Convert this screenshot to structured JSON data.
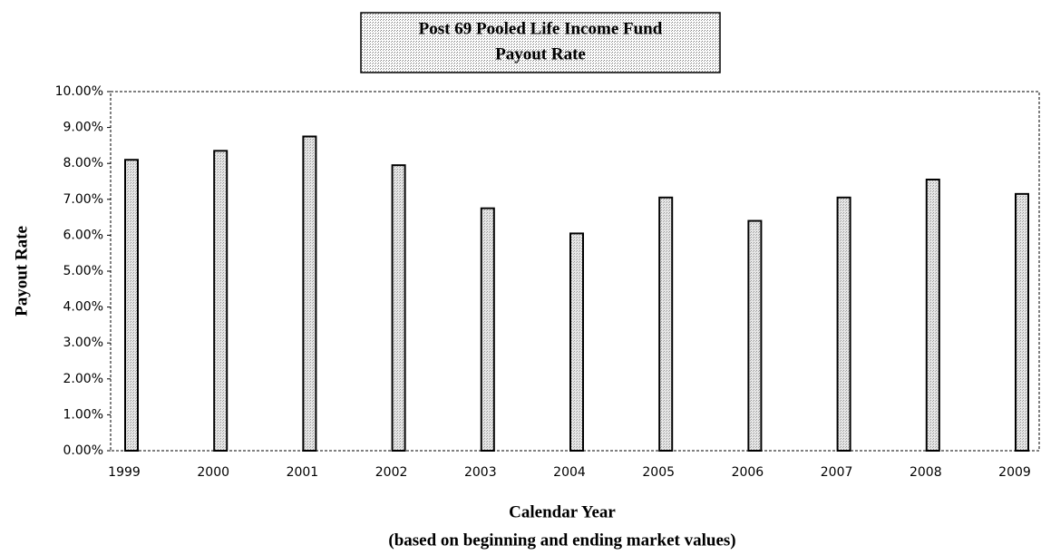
{
  "chart_data": {
    "type": "bar",
    "title": [
      "Post 69 Pooled Life Income Fund",
      "Payout Rate"
    ],
    "x_label": "Calendar Year",
    "note": "(based on beginning and ending market values)",
    "y_label": "Payout Rate",
    "categories": [
      "1999",
      "2000",
      "2001",
      "2002",
      "2003",
      "2004",
      "2005",
      "2006",
      "2007",
      "2008",
      "2009"
    ],
    "values": [
      8.1,
      8.35,
      8.75,
      7.95,
      6.75,
      6.05,
      7.05,
      6.4,
      7.05,
      7.55,
      7.15
    ],
    "color": "#c4c4c4",
    "ylim": [
      0,
      10
    ],
    "yticks": [
      {
        "value": 0,
        "label": "0.00%"
      },
      {
        "value": 1,
        "label": "1.00%"
      },
      {
        "value": 2,
        "label": "2.00%"
      },
      {
        "value": 3,
        "label": "3.00%"
      },
      {
        "value": 4,
        "label": "4.00%"
      },
      {
        "value": 5,
        "label": "5.00%"
      },
      {
        "value": 6,
        "label": "6.00%"
      },
      {
        "value": 7,
        "label": "7.00%"
      },
      {
        "value": 8,
        "label": "8.00%"
      },
      {
        "value": 9,
        "label": "9.00%"
      },
      {
        "value": 10,
        "label": "10.00%"
      }
    ],
    "grid": false
  }
}
